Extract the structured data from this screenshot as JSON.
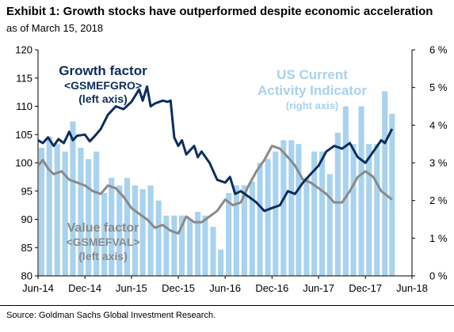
{
  "header": {
    "title": "Exhibit 1: Growth stocks have outperformed despite economic acceleration",
    "subtitle": "as of March 15, 2018"
  },
  "source": "Source: Goldman Sachs Global Investment Research.",
  "chart_data": {
    "type": "line+bar",
    "x_ticks": [
      "Jun-14",
      "Dec-14",
      "Jun-15",
      "Dec-15",
      "Jun-16",
      "Dec-16",
      "Jun-17",
      "Dec-17",
      "Jun-18"
    ],
    "left_axis": {
      "ylim": [
        80,
        120
      ],
      "ticks": [
        "80",
        "85",
        "90",
        "95",
        "100",
        "105",
        "110",
        "115",
        "120"
      ]
    },
    "right_axis": {
      "ylim": [
        0,
        6
      ],
      "ticks": [
        "0 %",
        "1 %",
        "2 %",
        "3 %",
        "4 %",
        "5 %",
        "6 %"
      ]
    },
    "annotations": {
      "growth": [
        "Growth factor",
        "<GSMEFGRO>",
        "(left axis)"
      ],
      "cai": [
        "US Current",
        "Activity Indicator",
        "(right axis)"
      ],
      "value": [
        "Value factor",
        "<GSMEFVAL>",
        "(left axis)"
      ]
    },
    "colors": {
      "growth": "#0d2d5e",
      "value": "#8a8a8a",
      "cai": "#a8d2ef"
    },
    "cai_bars": [
      {
        "date": "2014-06",
        "value": 3.4
      },
      {
        "date": "2014-07",
        "value": 3.7
      },
      {
        "date": "2014-08",
        "value": 3.5
      },
      {
        "date": "2014-09",
        "value": 3.3
      },
      {
        "date": "2014-10",
        "value": 4.1
      },
      {
        "date": "2014-11",
        "value": 3.4
      },
      {
        "date": "2014-12",
        "value": 3.1
      },
      {
        "date": "2015-01",
        "value": 3.3
      },
      {
        "date": "2015-02",
        "value": 2.2
      },
      {
        "date": "2015-03",
        "value": 2.6
      },
      {
        "date": "2015-04",
        "value": 2.4
      },
      {
        "date": "2015-05",
        "value": 2.6
      },
      {
        "date": "2015-06",
        "value": 2.4
      },
      {
        "date": "2015-07",
        "value": 2.3
      },
      {
        "date": "2015-08",
        "value": 2.4
      },
      {
        "date": "2015-09",
        "value": 2.0
      },
      {
        "date": "2015-10",
        "value": 1.6
      },
      {
        "date": "2015-11",
        "value": 1.6
      },
      {
        "date": "2015-12",
        "value": 1.6
      },
      {
        "date": "2016-01",
        "value": 1.5
      },
      {
        "date": "2016-02",
        "value": 1.7
      },
      {
        "date": "2016-03",
        "value": 1.6
      },
      {
        "date": "2016-04",
        "value": 1.3
      },
      {
        "date": "2016-05",
        "value": 0.7
      },
      {
        "date": "2016-06",
        "value": 2.2
      },
      {
        "date": "2016-07",
        "value": 2.4
      },
      {
        "date": "2016-08",
        "value": 2.4
      },
      {
        "date": "2016-09",
        "value": 2.5
      },
      {
        "date": "2016-10",
        "value": 3.0
      },
      {
        "date": "2016-11",
        "value": 3.1
      },
      {
        "date": "2016-12",
        "value": 3.3
      },
      {
        "date": "2017-01",
        "value": 3.6
      },
      {
        "date": "2017-02",
        "value": 3.6
      },
      {
        "date": "2017-03",
        "value": 3.5
      },
      {
        "date": "2017-04",
        "value": 2.6
      },
      {
        "date": "2017-05",
        "value": 3.3
      },
      {
        "date": "2017-06",
        "value": 3.3
      },
      {
        "date": "2017-07",
        "value": 2.7
      },
      {
        "date": "2017-08",
        "value": 3.8
      },
      {
        "date": "2017-09",
        "value": 4.5
      },
      {
        "date": "2017-10",
        "value": 3.5
      },
      {
        "date": "2017-11",
        "value": 4.5
      },
      {
        "date": "2017-12",
        "value": 3.5
      },
      {
        "date": "2018-01",
        "value": 3.5
      },
      {
        "date": "2018-02",
        "value": 4.9
      },
      {
        "date": "2018-03",
        "value": 4.3
      }
    ],
    "growth_series": [
      [
        "2014-06-01",
        104.0
      ],
      [
        "2014-06-20",
        103.5
      ],
      [
        "2014-07-10",
        104.5
      ],
      [
        "2014-08-01",
        103.0
      ],
      [
        "2014-08-20",
        104.2
      ],
      [
        "2014-09-10",
        103.5
      ],
      [
        "2014-10-01",
        105.5
      ],
      [
        "2014-10-15",
        104.0
      ],
      [
        "2014-11-01",
        104.8
      ],
      [
        "2014-12-01",
        105.0
      ],
      [
        "2014-12-20",
        103.8
      ],
      [
        "2015-01-10",
        104.8
      ],
      [
        "2015-02-01",
        106.0
      ],
      [
        "2015-03-01",
        108.5
      ],
      [
        "2015-04-01",
        110.0
      ],
      [
        "2015-05-01",
        109.5
      ],
      [
        "2015-06-01",
        110.8
      ],
      [
        "2015-07-01",
        113.0
      ],
      [
        "2015-07-15",
        111.0
      ],
      [
        "2015-08-01",
        113.5
      ],
      [
        "2015-08-15",
        110.0
      ],
      [
        "2015-09-01",
        110.5
      ],
      [
        "2015-10-01",
        111.0
      ],
      [
        "2015-10-20",
        110.8
      ],
      [
        "2015-11-01",
        111.0
      ],
      [
        "2015-11-15",
        104.5
      ],
      [
        "2015-12-01",
        103.0
      ],
      [
        "2015-12-15",
        104.0
      ],
      [
        "2016-01-01",
        101.5
      ],
      [
        "2016-02-01",
        103.0
      ],
      [
        "2016-02-15",
        101.0
      ],
      [
        "2016-03-01",
        102.0
      ],
      [
        "2016-04-01",
        100.0
      ],
      [
        "2016-05-01",
        97.0
      ],
      [
        "2016-06-01",
        96.5
      ],
      [
        "2016-06-20",
        97.5
      ],
      [
        "2016-07-10",
        94.5
      ],
      [
        "2016-08-01",
        95.0
      ],
      [
        "2016-09-01",
        94.0
      ],
      [
        "2016-10-01",
        93.0
      ],
      [
        "2016-11-01",
        91.5
      ],
      [
        "2016-12-01",
        92.0
      ],
      [
        "2017-01-01",
        92.5
      ],
      [
        "2017-02-01",
        95.0
      ],
      [
        "2017-03-01",
        94.5
      ],
      [
        "2017-04-01",
        96.5
      ],
      [
        "2017-05-01",
        98.0
      ],
      [
        "2017-06-01",
        99.5
      ],
      [
        "2017-07-01",
        102.0
      ],
      [
        "2017-08-01",
        103.0
      ],
      [
        "2017-09-01",
        102.5
      ],
      [
        "2017-10-01",
        103.5
      ],
      [
        "2017-11-01",
        101.0
      ],
      [
        "2017-12-01",
        100.0
      ],
      [
        "2018-01-01",
        102.0
      ],
      [
        "2018-02-01",
        104.0
      ],
      [
        "2018-02-15",
        103.5
      ],
      [
        "2018-03-15",
        106.0
      ]
    ],
    "value_series": [
      [
        "2014-06-01",
        99.5
      ],
      [
        "2014-06-20",
        100.5
      ],
      [
        "2014-07-10",
        99.0
      ],
      [
        "2014-08-01",
        98.0
      ],
      [
        "2014-09-01",
        98.5
      ],
      [
        "2014-10-01",
        97.0
      ],
      [
        "2014-11-01",
        96.5
      ],
      [
        "2014-12-01",
        96.0
      ],
      [
        "2015-01-01",
        95.0
      ],
      [
        "2015-02-01",
        94.5
      ],
      [
        "2015-03-01",
        96.0
      ],
      [
        "2015-04-01",
        95.5
      ],
      [
        "2015-05-01",
        94.0
      ],
      [
        "2015-06-01",
        92.0
      ],
      [
        "2015-07-01",
        91.0
      ],
      [
        "2015-08-01",
        90.0
      ],
      [
        "2015-09-01",
        88.5
      ],
      [
        "2015-10-01",
        89.0
      ],
      [
        "2015-11-01",
        88.0
      ],
      [
        "2015-12-01",
        87.5
      ],
      [
        "2016-01-01",
        90.5
      ],
      [
        "2016-02-01",
        89.5
      ],
      [
        "2016-03-01",
        89.5
      ],
      [
        "2016-04-01",
        90.5
      ],
      [
        "2016-05-01",
        91.5
      ],
      [
        "2016-06-01",
        93.5
      ],
      [
        "2016-07-01",
        92.5
      ],
      [
        "2016-08-01",
        93.0
      ],
      [
        "2016-09-01",
        96.0
      ],
      [
        "2016-10-01",
        98.5
      ],
      [
        "2016-11-01",
        100.5
      ],
      [
        "2016-12-01",
        103.0
      ],
      [
        "2017-01-01",
        102.5
      ],
      [
        "2017-02-01",
        101.0
      ],
      [
        "2017-03-01",
        99.5
      ],
      [
        "2017-04-01",
        97.0
      ],
      [
        "2017-05-01",
        96.5
      ],
      [
        "2017-06-01",
        95.5
      ],
      [
        "2017-07-01",
        94.5
      ],
      [
        "2017-08-01",
        93.0
      ],
      [
        "2017-09-01",
        93.0
      ],
      [
        "2017-10-01",
        95.0
      ],
      [
        "2017-11-01",
        97.5
      ],
      [
        "2017-12-01",
        98.5
      ],
      [
        "2018-01-01",
        97.5
      ],
      [
        "2018-02-01",
        95.0
      ],
      [
        "2018-03-15",
        93.5
      ]
    ]
  }
}
